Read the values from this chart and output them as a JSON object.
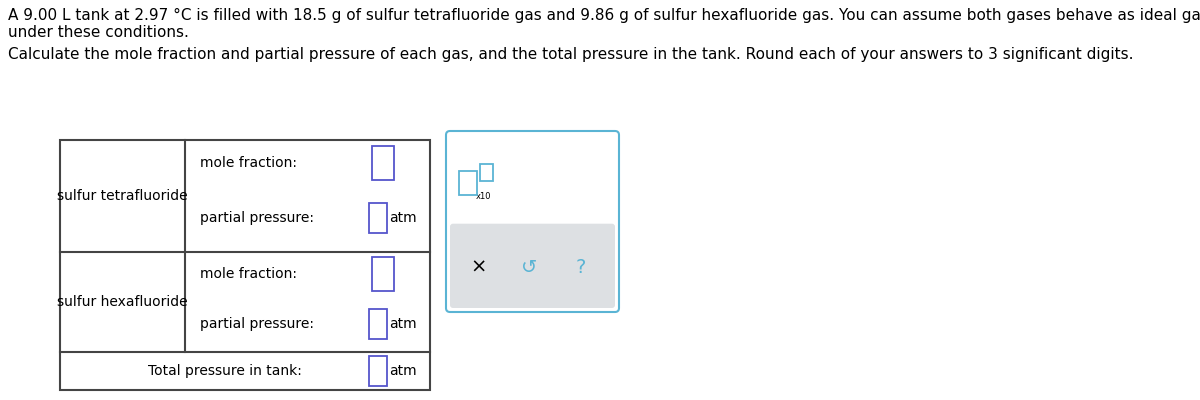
{
  "title_line1": "A 9.00 L tank at 2.97 °C is filled with 18.5 g of sulfur tetrafluoride gas and 9.86 g of sulfur hexafluoride gas. You can assume both gases behave as ideal gases",
  "title_line2": "under these conditions.",
  "subtitle": "Calculate the mole fraction and partial pressure of each gas, and the total pressure in the tank. Round each of your answers to 3 significant digits.",
  "gas1_name": "sulfur tetrafluoride",
  "gas2_name": "sulfur hexafluoride",
  "mole_fraction_label": "mole fraction:",
  "partial_pressure_label": "partial pressure:",
  "total_pressure_label": "Total pressure in tank:",
  "atm_label": "atm",
  "x10_label": "x10",
  "bg_color": "#ffffff",
  "text_color": "#000000",
  "table_line_color": "#444444",
  "input_box_color": "#5555cc",
  "popup_border_color": "#5ab4d4",
  "popup_bottom_bg": "#dde0e3",
  "icon_color": "#5ab4d4",
  "font_size_body": 11,
  "font_size_table": 10,
  "font_size_icon": 14
}
